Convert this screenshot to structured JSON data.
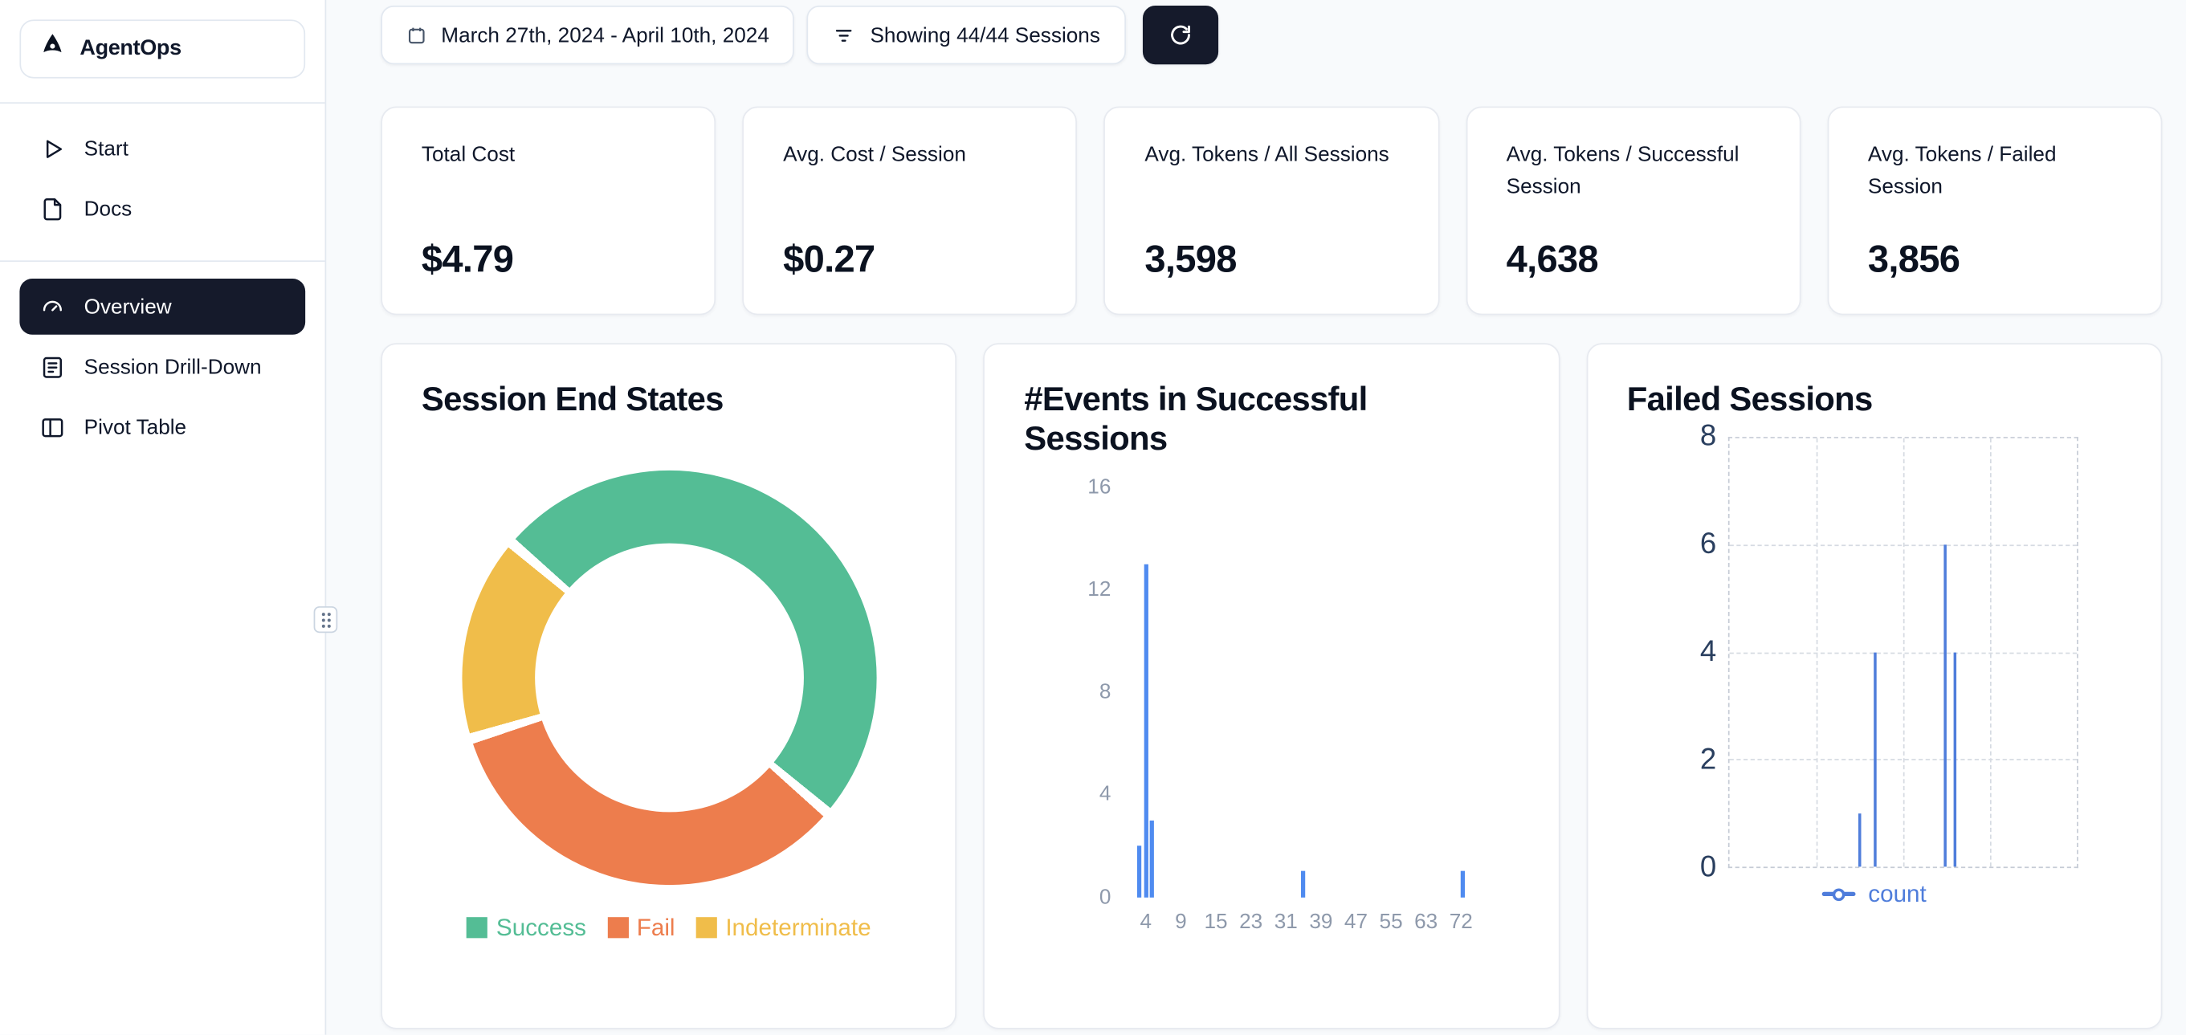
{
  "app": {
    "name": "AgentOps"
  },
  "sidebar": {
    "items": [
      {
        "label": "Start"
      },
      {
        "label": "Docs"
      },
      {
        "label": "Overview",
        "active": true
      },
      {
        "label": "Session Drill-Down"
      },
      {
        "label": "Pivot Table"
      }
    ]
  },
  "topbar": {
    "date_range_label": "March 27th, 2024 - April 10th, 2024",
    "filter_label": "Showing 44/44 Sessions"
  },
  "stats": [
    {
      "label": "Total Cost",
      "value": "$4.79"
    },
    {
      "label": "Avg. Cost / Session",
      "value": "$0.27"
    },
    {
      "label": "Avg. Tokens / All Sessions",
      "value": "3,598"
    },
    {
      "label": "Avg. Tokens / Successful Session",
      "value": "4,638"
    },
    {
      "label": "Avg. Tokens / Failed Session",
      "value": "3,856"
    }
  ],
  "chart_data": [
    {
      "type": "pie",
      "title": "Session End States",
      "labels": [
        "Success",
        "Fail",
        "Indeterminate"
      ],
      "values_pct": [
        50,
        34,
        16
      ],
      "colors": [
        "#54bd95",
        "#ed7d4d",
        "#f0bd4a"
      ],
      "donut": true,
      "start_angle_deg": 312,
      "segment_gap_deg": 3,
      "legend_position": "bottom"
    },
    {
      "type": "bar",
      "title": "#Events in Successful Sessions",
      "xlabel": "",
      "ylabel": "",
      "x_ticks": [
        4,
        9,
        15,
        23,
        31,
        39,
        47,
        55,
        63,
        72
      ],
      "y_ticks": [
        0,
        4,
        8,
        12,
        16
      ],
      "ylim": [
        0,
        16
      ],
      "bar_color": "#4f8bf0",
      "first_tick_frac": 0.053,
      "last_tick_frac": 0.853,
      "bars": [
        {
          "events": 3,
          "count": 2,
          "frac": 0.032
        },
        {
          "events": 4,
          "count": 13,
          "frac": 0.047
        },
        {
          "events": 5,
          "count": 3,
          "frac": 0.063
        },
        {
          "events": 39,
          "count": 1,
          "frac": 0.447
        },
        {
          "events": 72,
          "count": 1,
          "frac": 0.853
        }
      ]
    },
    {
      "type": "line",
      "title": "Failed Sessions",
      "y_ticks": [
        0,
        2,
        4,
        6,
        8
      ],
      "ylim": [
        0,
        8
      ],
      "grid": "dashed",
      "legend_position": "bottom",
      "series": [
        {
          "name": "count",
          "color": "#4f7ddb",
          "points": [
            {
              "x_frac": 0.372,
              "count": 1
            },
            {
              "x_frac": 0.417,
              "count": 4
            },
            {
              "x_frac": 0.619,
              "count": 6
            },
            {
              "x_frac": 0.648,
              "count": 4
            }
          ]
        }
      ]
    }
  ]
}
